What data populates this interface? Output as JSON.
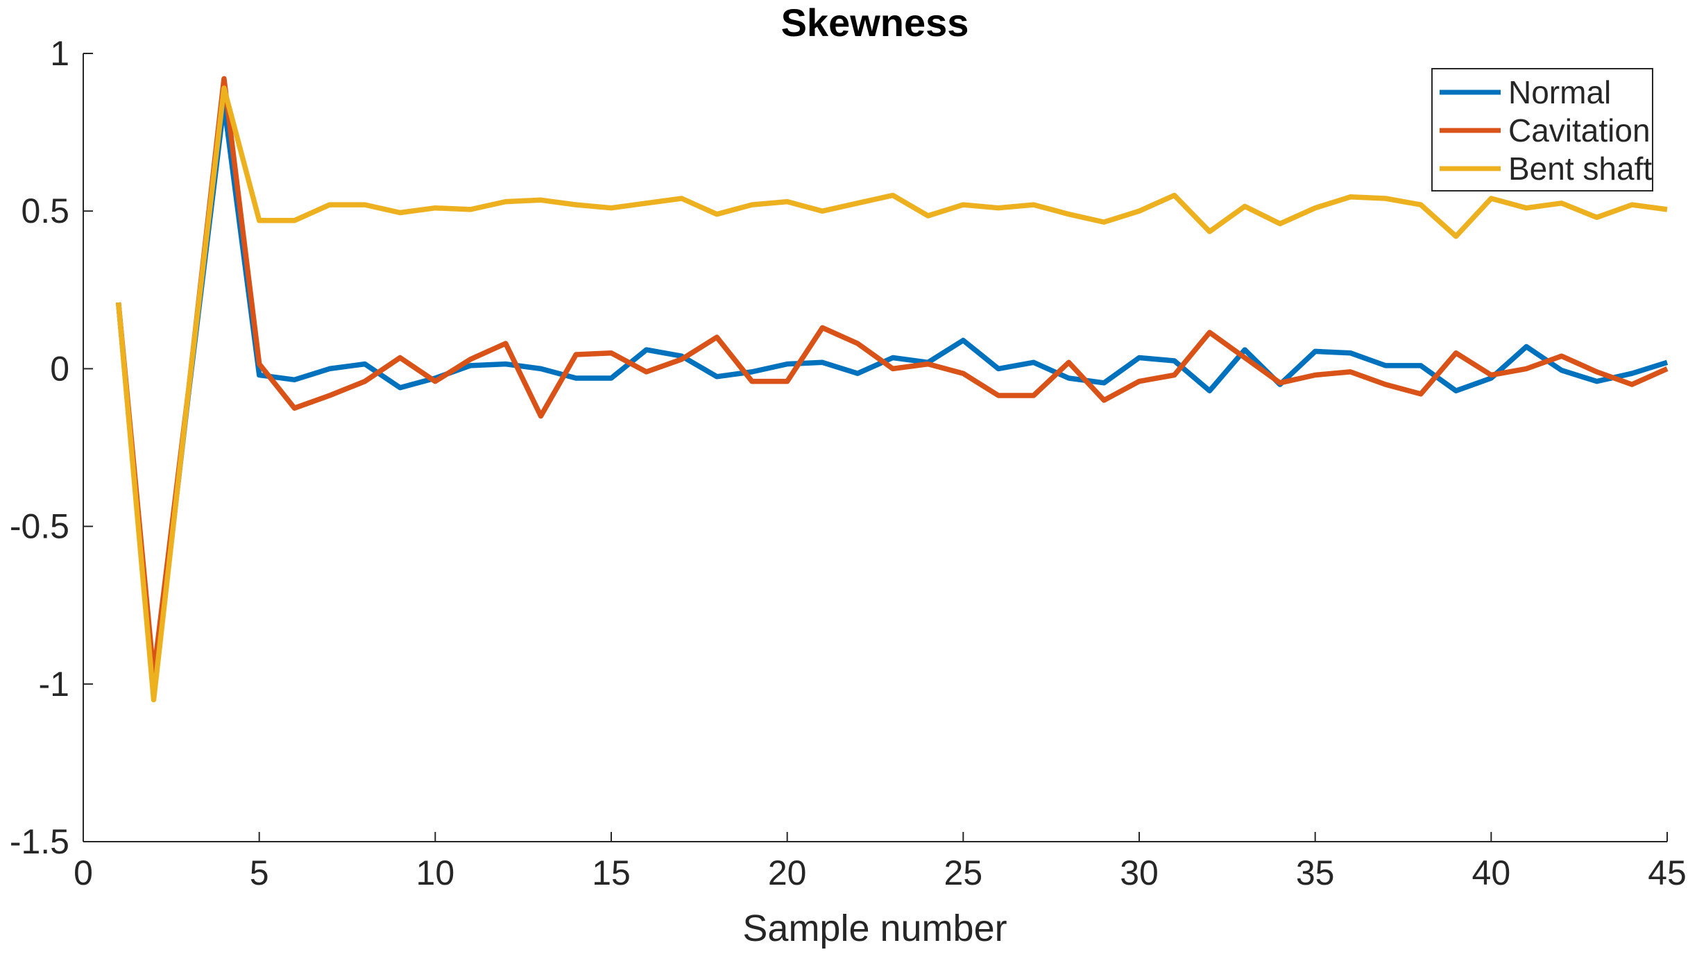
{
  "chart_data": {
    "type": "line",
    "title": "Skewness",
    "xlabel": "Sample number",
    "ylabel": "",
    "xlim": [
      0,
      45
    ],
    "ylim": [
      -1.5,
      1
    ],
    "xticks": [
      0,
      5,
      10,
      15,
      20,
      25,
      30,
      35,
      40,
      45
    ],
    "yticks": [
      -1.5,
      -1,
      -0.5,
      0,
      0.5,
      1
    ],
    "grid": false,
    "legend_position": "top-right",
    "x": [
      1,
      2,
      3,
      4,
      5,
      6,
      7,
      8,
      9,
      10,
      11,
      12,
      13,
      14,
      15,
      16,
      17,
      18,
      19,
      20,
      21,
      22,
      23,
      24,
      25,
      26,
      27,
      28,
      29,
      30,
      31,
      32,
      33,
      34,
      35,
      36,
      37,
      38,
      39,
      40,
      41,
      42,
      43,
      44,
      45
    ],
    "series": [
      {
        "name": "Normal",
        "color": "#0072BD",
        "values": [
          0.21,
          -1.03,
          -0.07,
          0.84,
          -0.02,
          -0.035,
          0.0,
          0.015,
          -0.06,
          -0.03,
          0.01,
          0.015,
          0.0,
          -0.03,
          -0.03,
          0.06,
          0.04,
          -0.025,
          -0.01,
          0.015,
          0.02,
          -0.015,
          0.035,
          0.02,
          0.09,
          0.0,
          0.02,
          -0.03,
          -0.045,
          0.035,
          0.025,
          -0.07,
          0.06,
          -0.05,
          0.055,
          0.05,
          0.01,
          0.01,
          -0.07,
          -0.03,
          0.07,
          -0.005,
          -0.04,
          -0.015,
          0.02
        ]
      },
      {
        "name": "Cavitation",
        "color": "#D95319",
        "values": [
          0.21,
          -0.97,
          -0.06,
          0.92,
          0.015,
          -0.125,
          -0.085,
          -0.04,
          0.035,
          -0.04,
          0.03,
          0.08,
          -0.15,
          0.045,
          0.05,
          -0.01,
          0.03,
          0.1,
          -0.04,
          -0.04,
          0.13,
          0.08,
          0.0,
          0.015,
          -0.015,
          -0.085,
          -0.085,
          0.02,
          -0.1,
          -0.04,
          -0.02,
          0.115,
          0.035,
          -0.045,
          -0.02,
          -0.01,
          -0.05,
          -0.08,
          0.05,
          -0.02,
          0.0,
          0.04,
          -0.01,
          -0.05,
          0.0
        ]
      },
      {
        "name": "Bent shaft",
        "color": "#EDB120",
        "values": [
          0.21,
          -1.05,
          -0.06,
          0.89,
          0.47,
          0.47,
          0.52,
          0.52,
          0.495,
          0.51,
          0.505,
          0.53,
          0.535,
          0.52,
          0.51,
          0.525,
          0.54,
          0.49,
          0.52,
          0.53,
          0.5,
          0.525,
          0.55,
          0.485,
          0.52,
          0.51,
          0.52,
          0.49,
          0.465,
          0.5,
          0.55,
          0.435,
          0.515,
          0.46,
          0.51,
          0.545,
          0.54,
          0.52,
          0.42,
          0.54,
          0.51,
          0.525,
          0.48,
          0.52,
          0.505
        ]
      }
    ]
  }
}
